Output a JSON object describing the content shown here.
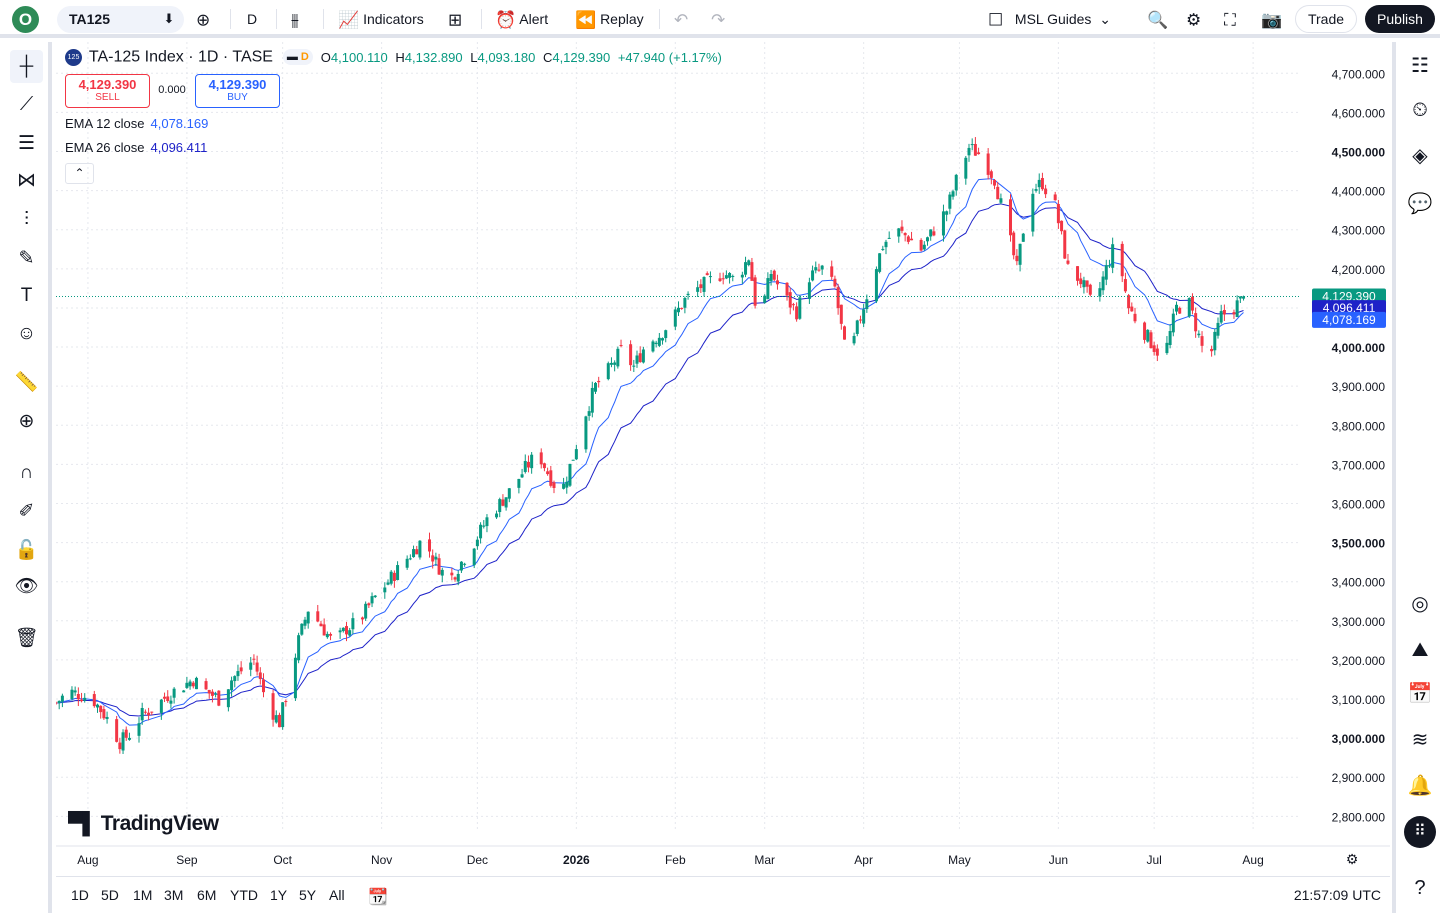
{
  "topbar": {
    "logo_letter": "O",
    "symbol": "TA125",
    "interval": "D",
    "indicators_label": "Indicators",
    "alert_label": "Alert",
    "replay_label": "Replay",
    "layout_name": "MSL Guides",
    "trade_label": "Trade",
    "publish_label": "Publish"
  },
  "legend": {
    "symbol_icon_text": "125",
    "title": "TA-125 Index · 1D · TASE",
    "interval_badge": "D",
    "open_label": "O",
    "open": "4,100.110",
    "high_label": "H",
    "high": "4,132.890",
    "low_label": "L",
    "low": "4,093.180",
    "close_label": "C",
    "close": "4,129.390",
    "change": "+47.940 (+1.17%)"
  },
  "trade_panel": {
    "sell_price": "4,129.390",
    "sell_label": "SELL",
    "spread": "0.000",
    "buy_price": "4,129.390",
    "buy_label": "BUY"
  },
  "indicators": [
    {
      "label": "EMA 12 close",
      "value": "4,078.169"
    },
    {
      "label": "EMA 26 close",
      "value": "4,096.411"
    }
  ],
  "watermark": "TradingView",
  "colors": {
    "up": "#089981",
    "down": "#f23645",
    "ema12": "#2962ff",
    "ema26": "#1e22c8",
    "grid": "#e6e8ee"
  },
  "price_badges": {
    "last": "4,129.390",
    "ema26": "4,096.411",
    "ema12": "4,078.169"
  },
  "chart_data": {
    "type": "candlestick",
    "title": "TA-125 Index · 1D · TASE",
    "y_ticks": [
      "4,700.000",
      "4,600.000",
      "4,500.000",
      "4,400.000",
      "4,300.000",
      "4,200.000",
      "4,100.000",
      "4,000.000",
      "3,900.000",
      "3,800.000",
      "3,700.000",
      "3,600.000",
      "3,500.000",
      "3,400.000",
      "3,300.000",
      "3,200.000",
      "3,100.000",
      "3,000.000",
      "2,900.000",
      "2,800.000"
    ],
    "y_tick_values": [
      4700,
      4600,
      4500,
      4400,
      4300,
      4200,
      4100,
      4000,
      3900,
      3800,
      3700,
      3600,
      3500,
      3400,
      3300,
      3200,
      3100,
      3000,
      2900,
      2800
    ],
    "bold_ticks": [
      "4,500.000",
      "4,000.000",
      "3,500.000",
      "3,000.000"
    ],
    "ylim": [
      2760,
      4780
    ],
    "x_labels": [
      "Aug",
      "Sep",
      "Oct",
      "Nov",
      "Dec",
      "2026",
      "Feb",
      "Mar",
      "Apr",
      "May",
      "Jun",
      "Jul",
      "Aug"
    ],
    "x_label_dates": [
      "2025-08-01",
      "2025-09-01",
      "2025-10-01",
      "2025-11-01",
      "2025-12-01",
      "2026-01-01",
      "2026-02-01",
      "2026-03-01",
      "2026-04-01",
      "2026-05-01",
      "2026-06-01",
      "2026-07-01",
      "2026-08-01"
    ],
    "x_range": [
      "2025-07-22",
      "2026-08-16"
    ],
    "last_close": 4129.39,
    "close_path": [
      [
        "2025-07-22",
        3090
      ],
      [
        "2025-07-26",
        3120
      ],
      [
        "2025-07-30",
        3110
      ],
      [
        "2025-08-03",
        3095
      ],
      [
        "2025-08-07",
        3050
      ],
      [
        "2025-08-11",
        2990
      ],
      [
        "2025-08-14",
        3010
      ],
      [
        "2025-08-18",
        3060
      ],
      [
        "2025-08-22",
        3080
      ],
      [
        "2025-08-26",
        3110
      ],
      [
        "2025-08-30",
        3130
      ],
      [
        "2025-09-03",
        3150
      ],
      [
        "2025-09-07",
        3120
      ],
      [
        "2025-09-11",
        3100
      ],
      [
        "2025-09-15",
        3150
      ],
      [
        "2025-09-19",
        3180
      ],
      [
        "2025-09-22",
        3200
      ],
      [
        "2025-09-26",
        3090
      ],
      [
        "2025-09-30",
        3040
      ],
      [
        "2025-10-03",
        3140
      ],
      [
        "2025-10-06",
        3250
      ],
      [
        "2025-10-09",
        3330
      ],
      [
        "2025-10-13",
        3290
      ],
      [
        "2025-10-17",
        3240
      ],
      [
        "2025-10-21",
        3280
      ],
      [
        "2025-10-25",
        3300
      ],
      [
        "2025-10-29",
        3350
      ],
      [
        "2025-11-02",
        3390
      ],
      [
        "2025-11-06",
        3430
      ],
      [
        "2025-11-10",
        3470
      ],
      [
        "2025-11-14",
        3510
      ],
      [
        "2025-11-18",
        3450
      ],
      [
        "2025-11-22",
        3400
      ],
      [
        "2025-11-26",
        3450
      ],
      [
        "2025-11-30",
        3500
      ],
      [
        "2025-12-04",
        3560
      ],
      [
        "2025-12-08",
        3600
      ],
      [
        "2025-12-12",
        3640
      ],
      [
        "2025-12-16",
        3690
      ],
      [
        "2025-12-20",
        3730
      ],
      [
        "2025-12-23",
        3680
      ],
      [
        "2025-12-27",
        3620
      ],
      [
        "2025-12-31",
        3720
      ],
      [
        "2026-01-03",
        3810
      ],
      [
        "2026-01-07",
        3900
      ],
      [
        "2026-01-11",
        3940
      ],
      [
        "2026-01-15",
        3990
      ],
      [
        "2026-01-19",
        3950
      ],
      [
        "2026-01-23",
        4010
      ],
      [
        "2026-01-27",
        4030
      ],
      [
        "2026-01-31",
        4070
      ],
      [
        "2026-02-04",
        4120
      ],
      [
        "2026-02-08",
        4150
      ],
      [
        "2026-02-12",
        4170
      ],
      [
        "2026-02-16",
        4190
      ],
      [
        "2026-02-20",
        4170
      ],
      [
        "2026-02-24",
        4230
      ],
      [
        "2026-02-27",
        4060
      ],
      [
        "2026-03-03",
        4190
      ],
      [
        "2026-03-07",
        4130
      ],
      [
        "2026-03-11",
        4090
      ],
      [
        "2026-03-15",
        4180
      ],
      [
        "2026-03-19",
        4200
      ],
      [
        "2026-03-23",
        4150
      ],
      [
        "2026-03-27",
        3950
      ],
      [
        "2026-03-30",
        4050
      ],
      [
        "2026-04-03",
        4160
      ],
      [
        "2026-04-07",
        4260
      ],
      [
        "2026-04-11",
        4300
      ],
      [
        "2026-04-15",
        4280
      ],
      [
        "2026-04-19",
        4250
      ],
      [
        "2026-04-23",
        4300
      ],
      [
        "2026-04-27",
        4350
      ],
      [
        "2026-05-01",
        4450
      ],
      [
        "2026-05-04",
        4510
      ],
      [
        "2026-05-08",
        4490
      ],
      [
        "2026-05-12",
        4430
      ],
      [
        "2026-05-16",
        4300
      ],
      [
        "2026-05-19",
        4200
      ],
      [
        "2026-05-23",
        4400
      ],
      [
        "2026-05-27",
        4420
      ],
      [
        "2026-05-31",
        4360
      ],
      [
        "2026-06-04",
        4200
      ],
      [
        "2026-06-08",
        4170
      ],
      [
        "2026-06-12",
        4100
      ],
      [
        "2026-06-16",
        4200
      ],
      [
        "2026-06-19",
        4270
      ],
      [
        "2026-06-23",
        4100
      ],
      [
        "2026-06-27",
        4050
      ],
      [
        "2026-07-01",
        4000
      ],
      [
        "2026-07-04",
        3970
      ],
      [
        "2026-07-08",
        4100
      ],
      [
        "2026-07-12",
        4110
      ],
      [
        "2026-07-16",
        4000
      ],
      [
        "2026-07-19",
        3990
      ],
      [
        "2026-07-22",
        4080
      ],
      [
        "2026-07-26",
        4100
      ],
      [
        "2026-07-29",
        4129
      ]
    ],
    "series": [
      {
        "name": "EMA 12 close",
        "last": 4078.169
      },
      {
        "name": "EMA 26 close",
        "last": 4096.411
      }
    ]
  },
  "bottombar": {
    "ranges": [
      "1D",
      "5D",
      "1M",
      "3M",
      "6M",
      "YTD",
      "1Y",
      "5Y",
      "All"
    ],
    "time_utc": "21:57:09 UTC"
  }
}
